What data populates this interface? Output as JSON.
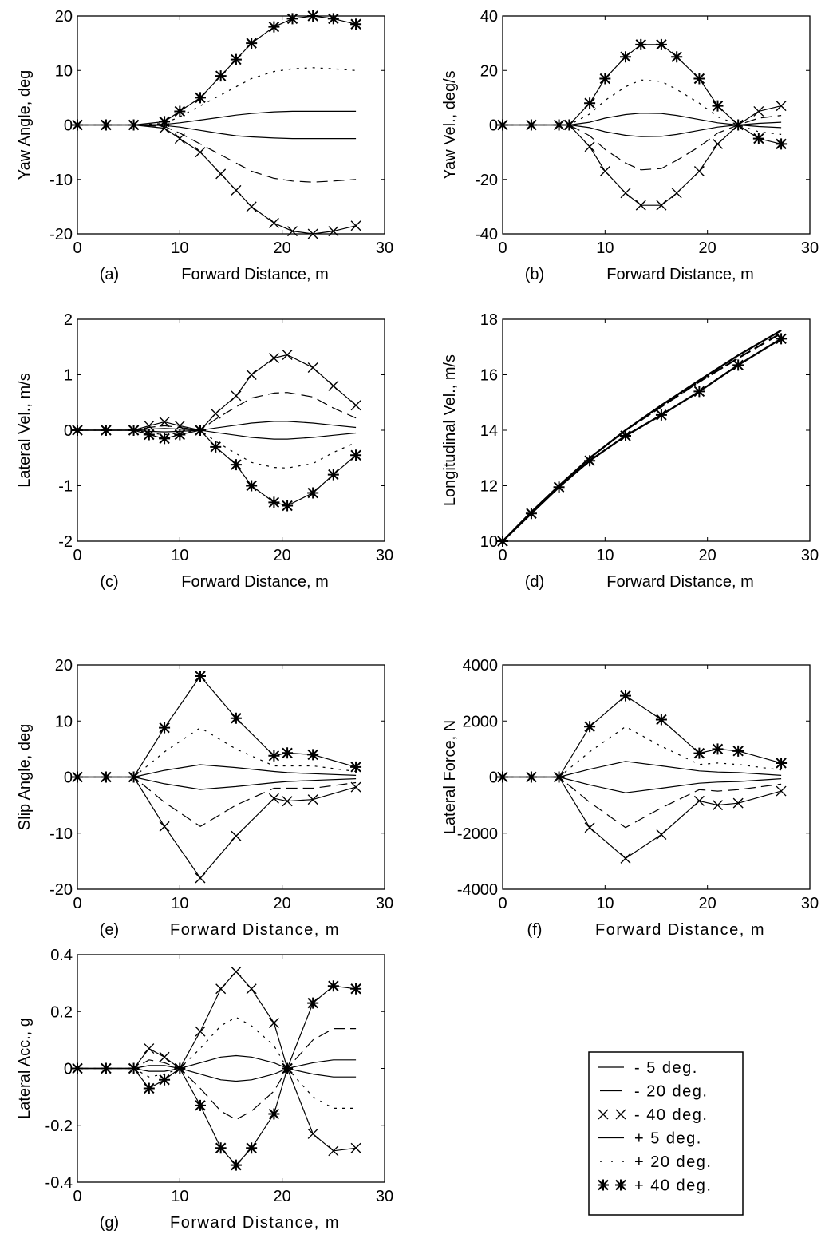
{
  "chart_data": [
    {
      "panel": "(a)",
      "type": "line",
      "xlabel": "Forward Distance, m",
      "ylabel": "Yaw Angle, deg",
      "xlim": [
        0,
        30
      ],
      "ylim": [
        -20,
        20
      ],
      "xticks": [
        0,
        10,
        20,
        30
      ],
      "yticks": [
        -20,
        -10,
        0,
        10,
        20
      ],
      "x": [
        0,
        2.8,
        5.5,
        8.5,
        10,
        12,
        14,
        15.5,
        17,
        19.2,
        21,
        23,
        25,
        27.2
      ],
      "series": [
        {
          "name": "- 5 deg.",
          "values": [
            0,
            0,
            0,
            -0.1,
            -0.4,
            -1,
            -1.6,
            -2,
            -2.2,
            -2.4,
            -2.5,
            -2.5,
            -2.5,
            -2.5
          ]
        },
        {
          "name": "- 20 deg.",
          "values": [
            0,
            0,
            0,
            -0.3,
            -1.5,
            -3.5,
            -5.5,
            -7,
            -8.5,
            -9.8,
            -10.3,
            -10.5,
            -10.3,
            -10
          ]
        },
        {
          "name": "- 40 deg.",
          "values": [
            0,
            0,
            0,
            -0.6,
            -2.5,
            -5,
            -9,
            -12,
            -15,
            -18,
            -19.5,
            -20,
            -19.5,
            -18.5
          ]
        },
        {
          "name": "+ 5 deg.",
          "values": [
            0,
            0,
            0,
            0.1,
            0.4,
            0.9,
            1.4,
            1.8,
            2.1,
            2.4,
            2.5,
            2.5,
            2.5,
            2.5
          ]
        },
        {
          "name": "+ 20 deg.",
          "values": [
            0,
            0,
            0,
            0.3,
            1.5,
            3.5,
            5.5,
            7,
            8.5,
            9.8,
            10.3,
            10.5,
            10.3,
            10
          ]
        },
        {
          "name": "+ 40 deg.",
          "values": [
            0,
            0,
            0,
            0.6,
            2.5,
            5,
            9,
            12,
            15,
            18,
            19.5,
            20,
            19.5,
            18.5
          ]
        }
      ]
    },
    {
      "panel": "(b)",
      "type": "line",
      "xlabel": "Forward Distance, m",
      "ylabel": "Yaw Vel., deg/s",
      "xlim": [
        0,
        30
      ],
      "ylim": [
        -40,
        40
      ],
      "xticks": [
        0,
        10,
        20,
        30
      ],
      "yticks": [
        -40,
        -20,
        0,
        20,
        40
      ],
      "x": [
        0,
        2.8,
        5.5,
        6.5,
        8.5,
        10,
        12,
        13.5,
        15.5,
        17,
        19.2,
        21,
        23,
        25,
        27.2
      ],
      "series": [
        {
          "name": "- 5 deg.",
          "values": [
            0,
            0,
            0,
            0,
            -1,
            -2.5,
            -3.8,
            -4.3,
            -4.2,
            -3.5,
            -2,
            -0.8,
            0,
            0.6,
            1
          ]
        },
        {
          "name": "- 20 deg.",
          "values": [
            0,
            0,
            0,
            0,
            -4,
            -9,
            -14,
            -16.5,
            -16,
            -13,
            -8,
            -3,
            0,
            2.5,
            3.5
          ]
        },
        {
          "name": "- 40 deg.",
          "values": [
            0,
            0,
            0,
            0,
            -8,
            -17,
            -25,
            -29.5,
            -29.5,
            -25,
            -17,
            -7,
            0,
            5,
            7
          ]
        },
        {
          "name": "+ 5 deg.",
          "values": [
            0,
            0,
            0,
            0,
            1,
            2.5,
            3.8,
            4.3,
            4.2,
            3.5,
            2,
            0.8,
            0,
            -0.6,
            -1
          ]
        },
        {
          "name": "+ 20 deg.",
          "values": [
            0,
            0,
            0,
            0,
            4,
            9,
            14,
            16.5,
            16,
            13,
            8,
            3,
            0,
            -2.5,
            -3.5
          ]
        },
        {
          "name": "+ 40 deg.",
          "values": [
            0,
            0,
            0,
            0,
            8,
            17,
            25,
            29.5,
            29.5,
            25,
            17,
            7,
            0,
            -5,
            -7
          ]
        }
      ]
    },
    {
      "panel": "(c)",
      "type": "line",
      "xlabel": "Forward Distance, m",
      "ylabel": "Lateral Vel., m/s",
      "xlim": [
        0,
        30
      ],
      "ylim": [
        -2,
        2
      ],
      "xticks": [
        0,
        10,
        20,
        30
      ],
      "yticks": [
        -2,
        -1,
        0,
        1,
        2
      ],
      "x": [
        0,
        2.8,
        5.5,
        7,
        8.5,
        10,
        12,
        13.5,
        15.5,
        17,
        19.2,
        20.5,
        23,
        25,
        27.2
      ],
      "series": [
        {
          "name": "- 5 deg.",
          "values": [
            0,
            0,
            0,
            0.02,
            0.03,
            0.02,
            0,
            0.04,
            0.09,
            0.13,
            0.16,
            0.16,
            0.13,
            0.09,
            0.05
          ]
        },
        {
          "name": "- 20 deg.",
          "values": [
            0,
            0,
            0,
            0.05,
            0.08,
            0.05,
            0,
            0.2,
            0.42,
            0.58,
            0.67,
            0.68,
            0.6,
            0.4,
            0.22
          ]
        },
        {
          "name": "- 40 deg.",
          "values": [
            0,
            0,
            0,
            0.08,
            0.15,
            0.08,
            0,
            0.3,
            0.62,
            1,
            1.3,
            1.36,
            1.13,
            0.8,
            0.45
          ]
        },
        {
          "name": "+ 5 deg.",
          "values": [
            0,
            0,
            0,
            -0.02,
            -0.03,
            -0.02,
            0,
            -0.04,
            -0.09,
            -0.13,
            -0.16,
            -0.16,
            -0.13,
            -0.09,
            -0.05
          ]
        },
        {
          "name": "+ 20 deg.",
          "values": [
            0,
            0,
            0,
            -0.05,
            -0.08,
            -0.05,
            0,
            -0.2,
            -0.42,
            -0.58,
            -0.67,
            -0.68,
            -0.6,
            -0.4,
            -0.22
          ]
        },
        {
          "name": "+ 40 deg.",
          "values": [
            0,
            0,
            0,
            -0.08,
            -0.15,
            -0.08,
            0,
            -0.3,
            -0.62,
            -1,
            -1.3,
            -1.36,
            -1.13,
            -0.8,
            -0.45
          ]
        }
      ]
    },
    {
      "panel": "(d)",
      "type": "line",
      "xlabel": "Forward Distance, m",
      "ylabel": "Longitudinal Vel., m/s",
      "xlim": [
        0,
        30
      ],
      "ylim": [
        10,
        18
      ],
      "xticks": [
        0,
        10,
        20,
        30
      ],
      "yticks": [
        10,
        12,
        14,
        16,
        18
      ],
      "x": [
        0,
        2.8,
        5.5,
        8.5,
        12,
        15.5,
        19.2,
        23,
        27.2
      ],
      "series": [
        {
          "name": "- 5 deg.",
          "values": [
            10,
            11.05,
            12.0,
            13.0,
            14.0,
            14.9,
            15.8,
            16.7,
            17.6
          ]
        },
        {
          "name": "- 20 deg.",
          "values": [
            10,
            11.05,
            12.0,
            13.0,
            14.0,
            14.85,
            15.75,
            16.6,
            17.5
          ]
        },
        {
          "name": "- 40 deg.",
          "values": [
            10,
            11.0,
            11.95,
            12.9,
            13.8,
            14.55,
            15.4,
            16.35,
            17.3
          ]
        },
        {
          "name": "+ 5 deg.",
          "values": [
            10,
            11.05,
            12.0,
            13.0,
            14.0,
            14.9,
            15.8,
            16.7,
            17.6
          ]
        },
        {
          "name": "+ 20 deg.",
          "values": [
            10,
            11.05,
            12.0,
            13.0,
            14.0,
            14.85,
            15.75,
            16.6,
            17.5
          ]
        },
        {
          "name": "+ 40 deg.",
          "values": [
            10,
            11.0,
            11.95,
            12.9,
            13.8,
            14.55,
            15.4,
            16.35,
            17.3
          ]
        }
      ]
    },
    {
      "panel": "(e)",
      "type": "line",
      "xlabel": "Forward Distance, m",
      "ylabel": "Slip Angle, deg",
      "xlim": [
        0,
        30
      ],
      "ylim": [
        -20,
        20
      ],
      "xticks": [
        0,
        10,
        20,
        30
      ],
      "yticks": [
        -20,
        -10,
        0,
        10,
        20
      ],
      "x": [
        0,
        2.8,
        5.5,
        8.5,
        12,
        15.5,
        19.2,
        20.5,
        23,
        27.2
      ],
      "series": [
        {
          "name": "- 5 deg.",
          "values": [
            0,
            0,
            0,
            -1.2,
            -2.2,
            -1.7,
            -1,
            -0.8,
            -0.6,
            -0.3
          ]
        },
        {
          "name": "- 20 deg.",
          "values": [
            0,
            0,
            0,
            -4.5,
            -8.8,
            -5,
            -2,
            -2,
            -2,
            -1
          ]
        },
        {
          "name": "- 40 deg.",
          "values": [
            0,
            0,
            0,
            -8.8,
            -18,
            -10.5,
            -3.8,
            -4.3,
            -4,
            -1.8
          ]
        },
        {
          "name": "+ 5 deg.",
          "values": [
            0,
            0,
            0,
            1.2,
            2.2,
            1.7,
            1,
            0.8,
            0.6,
            0.3
          ]
        },
        {
          "name": "+ 20 deg.",
          "values": [
            0,
            0,
            0,
            4.5,
            8.8,
            5,
            2,
            2,
            2,
            1
          ]
        },
        {
          "name": "+ 40 deg.",
          "values": [
            0,
            0,
            0,
            8.8,
            18,
            10.5,
            3.8,
            4.3,
            4,
            1.8
          ]
        }
      ]
    },
    {
      "panel": "(f)",
      "type": "line",
      "xlabel": "Forward Distance, m",
      "ylabel": "Lateral Force, N",
      "xlim": [
        0,
        30
      ],
      "ylim": [
        -4000,
        4000
      ],
      "xticks": [
        0,
        10,
        20,
        30
      ],
      "yticks": [
        -4000,
        -2000,
        0,
        2000,
        4000
      ],
      "x": [
        0,
        2.8,
        5.5,
        8.5,
        12,
        15.5,
        19.2,
        21,
        23,
        27.2
      ],
      "series": [
        {
          "name": "- 5 deg.",
          "values": [
            0,
            0,
            0,
            -280,
            -560,
            -400,
            -220,
            -180,
            -160,
            -60
          ]
        },
        {
          "name": "- 20 deg.",
          "values": [
            0,
            0,
            0,
            -900,
            -1800,
            -1100,
            -450,
            -500,
            -450,
            -250
          ]
        },
        {
          "name": "- 40 deg.",
          "values": [
            0,
            0,
            0,
            -1800,
            -2900,
            -2050,
            -850,
            -1000,
            -930,
            -500
          ]
        },
        {
          "name": "+ 5 deg.",
          "values": [
            0,
            0,
            0,
            280,
            560,
            400,
            220,
            180,
            160,
            60
          ]
        },
        {
          "name": "+ 20 deg.",
          "values": [
            0,
            0,
            0,
            900,
            1800,
            1100,
            450,
            500,
            450,
            250
          ]
        },
        {
          "name": "+ 40 deg.",
          "values": [
            0,
            0,
            0,
            1800,
            2900,
            2050,
            850,
            1000,
            930,
            500
          ]
        }
      ]
    },
    {
      "panel": "(g)",
      "type": "line",
      "xlabel": "Forward Distance, m",
      "ylabel": "Lateral Acc., g",
      "xlim": [
        0,
        30
      ],
      "ylim": [
        -0.4,
        0.4
      ],
      "xticks": [
        0,
        10,
        20,
        30
      ],
      "yticks": [
        -0.4,
        -0.2,
        0,
        0.2,
        0.4
      ],
      "x": [
        0,
        2.8,
        5.5,
        7,
        8.5,
        10,
        12,
        14,
        15.5,
        17,
        19.2,
        20.5,
        23,
        25,
        27.2
      ],
      "series": [
        {
          "name": "- 5 deg.",
          "values": [
            0,
            0,
            0,
            0.01,
            0.01,
            0,
            -0.02,
            -0.04,
            -0.045,
            -0.04,
            -0.02,
            0,
            0.02,
            0.03,
            0.03
          ]
        },
        {
          "name": "- 20 deg.",
          "values": [
            0,
            0,
            0,
            0.03,
            0.02,
            0,
            -0.07,
            -0.15,
            -0.18,
            -0.15,
            -0.08,
            0,
            0.1,
            0.14,
            0.14
          ]
        },
        {
          "name": "- 40 deg.",
          "values": [
            0,
            0,
            0,
            0.07,
            0.04,
            0,
            0.13,
            0.28,
            0.34,
            0.28,
            0.16,
            0,
            -0.23,
            -0.29,
            -0.28
          ]
        },
        {
          "name": "+ 5 deg.",
          "values": [
            0,
            0,
            0,
            -0.01,
            -0.01,
            0,
            0.02,
            0.04,
            0.045,
            0.04,
            0.02,
            0,
            -0.02,
            -0.03,
            -0.03
          ]
        },
        {
          "name": "+ 20 deg.",
          "values": [
            0,
            0,
            0,
            -0.03,
            -0.02,
            0,
            0.07,
            0.15,
            0.18,
            0.15,
            0.08,
            0,
            -0.1,
            -0.14,
            -0.14
          ]
        },
        {
          "name": "+ 40 deg.",
          "values": [
            0,
            0,
            0,
            -0.07,
            -0.04,
            0,
            -0.13,
            -0.28,
            -0.34,
            -0.28,
            -0.16,
            0,
            0.23,
            0.29,
            0.28
          ]
        }
      ]
    }
  ],
  "legend": {
    "placement": "bottom-right",
    "entries": [
      {
        "label": "- 5 deg.",
        "style": "solid"
      },
      {
        "label": "- 20 deg.",
        "style": "dashed"
      },
      {
        "label": "- 40 deg.",
        "style": "cross-markers"
      },
      {
        "label": "+ 5 deg.",
        "style": "solid"
      },
      {
        "label": "+ 20 deg.",
        "style": "dotted"
      },
      {
        "label": "+ 40 deg.",
        "style": "star-markers"
      }
    ]
  }
}
